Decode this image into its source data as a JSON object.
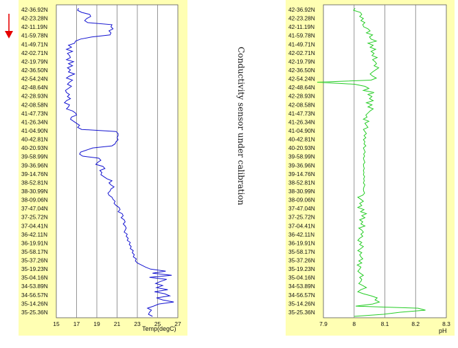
{
  "annotation": "Conductivity sensor under calibration",
  "direction_arrow": {
    "icon": "down-arrow-icon",
    "color": "#e60000"
  },
  "colors": {
    "panel_bg": "#ffffb3",
    "temp_line": "#1010d0",
    "ph_line": "#22cc22"
  },
  "chart_data": [
    {
      "type": "line",
      "orientation": "vertical",
      "title": "",
      "xlabel": "Temp(degC)",
      "ylabel": "",
      "xlim": [
        15,
        27
      ],
      "xticks": [
        "15",
        "17",
        "19",
        "21",
        "23",
        "25",
        "27"
      ],
      "grid": true,
      "series": [
        {
          "color": "#1010d0",
          "y": [
            0,
            3,
            6,
            9,
            12,
            15,
            18,
            21,
            24,
            27,
            30,
            33,
            36,
            39,
            42,
            45,
            48,
            51,
            54,
            57,
            60,
            63,
            66,
            69,
            72,
            75,
            78,
            81,
            84,
            87,
            90,
            93,
            96,
            99,
            102,
            105,
            108,
            111,
            114,
            117,
            120,
            123,
            126,
            129,
            132,
            135,
            138,
            141,
            144,
            147,
            150,
            153,
            156,
            159,
            162,
            165,
            168,
            171,
            174,
            177,
            180,
            183,
            186,
            189,
            192,
            195,
            198,
            201,
            204,
            207,
            210,
            213,
            216,
            219,
            222,
            225,
            228,
            231,
            234,
            237,
            240,
            243,
            246,
            249,
            252,
            255,
            258,
            261,
            264,
            267,
            270,
            273,
            276,
            279,
            282,
            285,
            288,
            291,
            294,
            297,
            300,
            303,
            306,
            309,
            312,
            315,
            318,
            321,
            324,
            327,
            330,
            333,
            336,
            339,
            342,
            345,
            348,
            351,
            354,
            357,
            360,
            363,
            366,
            369,
            372,
            375,
            378,
            381,
            384,
            387,
            390,
            393,
            396,
            399,
            402,
            405,
            408,
            411,
            414,
            417,
            420,
            423,
            426,
            429,
            432,
            435,
            438,
            441,
            444,
            447,
            450
          ],
          "values": [
            17.2,
            17.1,
            17.5,
            18.3,
            18.4,
            18.0,
            17.8,
            18.1,
            20.5,
            20.4,
            20.6,
            20.2,
            20.4,
            20.3,
            18.5,
            17.4,
            16.9,
            16.8,
            16.2,
            16.5,
            16.0,
            16.6,
            16.1,
            16.3,
            16.4,
            16.0,
            16.7,
            16.2,
            16.6,
            16.1,
            16.4,
            16.2,
            16.8,
            16.3,
            16.0,
            16.6,
            16.3,
            16.1,
            16.5,
            16.2,
            15.9,
            16.0,
            16.3,
            16.1,
            16.4,
            16.0,
            15.8,
            16.3,
            16.2,
            16.0,
            16.6,
            16.9,
            17.0,
            16.5,
            16.4,
            16.7,
            17.0,
            17.3,
            17.1,
            17.5,
            20.9,
            21.1,
            21.1,
            21.0,
            21.1,
            20.9,
            20.8,
            20.5,
            18.6,
            18.0,
            17.4,
            17.3,
            17.6,
            19.2,
            19.4,
            19.1,
            18.9,
            19.6,
            19.8,
            19.3,
            19.5,
            19.4,
            19.7,
            20.0,
            20.5,
            20.2,
            20.4,
            20.7,
            20.4,
            20.3,
            20.1,
            20.2,
            20.5,
            20.6,
            20.8,
            20.7,
            20.9,
            21.2,
            21.3,
            21.1,
            21.5,
            21.6,
            21.4,
            21.7,
            21.8,
            21.6,
            21.8,
            21.9,
            21.8,
            21.7,
            22.0,
            21.9,
            22.1,
            22.0,
            22.3,
            22.2,
            22.4,
            22.3,
            22.6,
            22.5,
            22.7,
            22.6,
            22.9,
            22.8,
            23.0,
            23.4,
            23.8,
            24.3,
            25.8,
            24.5,
            26.4,
            24.2,
            25.9,
            25.3,
            24.8,
            25.5,
            24.9,
            26.0,
            24.7,
            25.7,
            26.2,
            24.9,
            25.5,
            26.6,
            25.1,
            24.6,
            24.0,
            24.4,
            24.2,
            24.1,
            24.5
          ]
        }
      ]
    },
    {
      "type": "line",
      "orientation": "vertical",
      "title": "",
      "xlabel": "pH",
      "ylabel": "",
      "xlim": [
        7.9,
        8.3
      ],
      "xticks": [
        "7.9",
        "8",
        "8.1",
        "8.2",
        "8.3"
      ],
      "grid": true,
      "series": [
        {
          "color": "#22cc22",
          "y": [
            0,
            3,
            6,
            9,
            12,
            15,
            18,
            21,
            24,
            27,
            30,
            33,
            36,
            39,
            42,
            45,
            48,
            51,
            54,
            57,
            60,
            63,
            66,
            69,
            72,
            75,
            78,
            81,
            84,
            87,
            90,
            93,
            96,
            99,
            102,
            105,
            108,
            111,
            114,
            117,
            120,
            123,
            126,
            129,
            132,
            135,
            138,
            141,
            144,
            147,
            150,
            153,
            156,
            159,
            162,
            165,
            168,
            171,
            174,
            177,
            180,
            183,
            186,
            189,
            192,
            195,
            198,
            201,
            204,
            207,
            210,
            213,
            216,
            219,
            222,
            225,
            228,
            231,
            234,
            237,
            240,
            243,
            246,
            249,
            252,
            255,
            258,
            261,
            264,
            267,
            270,
            273,
            276,
            279,
            282,
            285,
            288,
            291,
            294,
            297,
            300,
            303,
            306,
            309,
            312,
            315,
            318,
            321,
            324,
            327,
            330,
            333,
            336,
            339,
            342,
            345,
            348,
            351,
            354,
            357,
            360,
            363,
            366,
            369,
            372,
            375,
            378,
            381,
            384,
            387,
            390,
            393,
            396,
            399,
            402,
            405,
            408,
            411,
            414,
            417,
            420,
            423,
            426,
            429,
            432,
            435,
            438,
            441,
            444,
            447,
            450
          ],
          "values": [
            8.003,
            7.998,
            8.02,
            8.025,
            8.018,
            8.03,
            8.022,
            8.035,
            8.028,
            8.031,
            8.045,
            8.052,
            8.04,
            8.06,
            8.05,
            8.055,
            8.072,
            8.045,
            8.062,
            8.052,
            8.07,
            8.055,
            8.065,
            8.058,
            8.075,
            8.06,
            8.068,
            8.073,
            8.065,
            8.08,
            8.07,
            8.06,
            8.052,
            8.06,
            8.072,
            8.055,
            7.88,
            8.002,
            8.035,
            8.048,
            8.03,
            8.065,
            8.045,
            8.058,
            8.05,
            8.062,
            8.04,
            8.058,
            8.045,
            8.062,
            8.052,
            8.045,
            8.038,
            8.042,
            8.03,
            8.048,
            8.035,
            8.04,
            8.045,
            8.03,
            8.035,
            8.04,
            8.032,
            8.038,
            8.03,
            8.035,
            8.032,
            8.038,
            8.03,
            8.033,
            8.036,
            8.031,
            8.034,
            8.03,
            8.032,
            8.035,
            8.03,
            8.031,
            8.033,
            8.03,
            8.032,
            8.03,
            8.034,
            8.031,
            8.033,
            8.03,
            8.035,
            8.032,
            8.03,
            8.031,
            8.034,
            8.028,
            8.012,
            8.022,
            8.03,
            8.018,
            8.025,
            8.012,
            8.032,
            8.021,
            8.04,
            8.025,
            8.035,
            8.018,
            8.028,
            8.022,
            8.035,
            8.015,
            8.025,
            8.03,
            8.022,
            8.028,
            8.018,
            8.012,
            8.025,
            8.018,
            8.03,
            8.022,
            8.012,
            8.025,
            8.018,
            8.022,
            8.028,
            8.015,
            8.025,
            8.01,
            8.022,
            8.018,
            8.012,
            8.02,
            8.03,
            8.018,
            8.025,
            8.022,
            8.015,
            8.028,
            8.04,
            8.022,
            8.012,
            8.03,
            8.055,
            8.075,
            8.068,
            8.082,
            8.06,
            8.005,
            8.208,
            8.232,
            8.15,
            8.095,
            8.0
          ]
        }
      ]
    }
  ],
  "latitude_labels": [
    "42-36.92N",
    "42-23.28N",
    "42-11.19N",
    "41-59.78N",
    "41-49.71N",
    "42-02.71N",
    "42-19.79N",
    "42-36.50N",
    "42-54.24N",
    "42-48.64N",
    "42-28.93N",
    "42-08.58N",
    "41-47.73N",
    "41-26.34N",
    "41-04.90N",
    "40-42.81N",
    "40-20.93N",
    "39-58.99N",
    "39-36.96N",
    "39-14.76N",
    "38-52.81N",
    "38-30.99N",
    "38-09.06N",
    "37-47.04N",
    "37-25.72N",
    "37-04.41N",
    "36-42.11N",
    "36-19.91N",
    "35-58.17N",
    "35-37.26N",
    "35-19.23N",
    "35-04.16N",
    "34-53.89N",
    "34-56.57N",
    "35-14.26N",
    "35-25.36N"
  ]
}
